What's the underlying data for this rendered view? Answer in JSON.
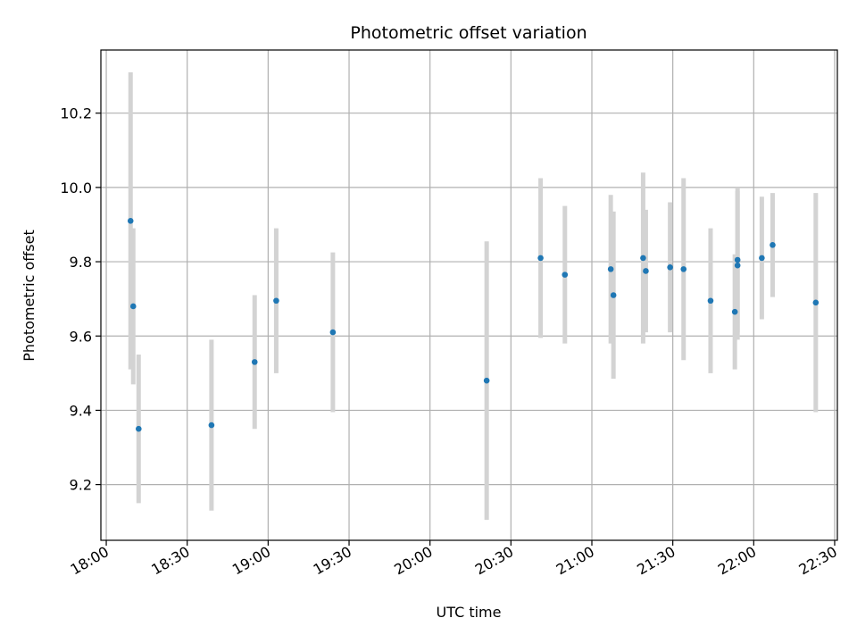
{
  "chart_data": {
    "type": "scatter",
    "title": "Photometric offset variation",
    "xlabel": "UTC time",
    "ylabel": "Photometric offset",
    "x_ticks": [
      "18:00",
      "18:30",
      "19:00",
      "19:30",
      "20:00",
      "20:30",
      "21:00",
      "21:30",
      "22:00",
      "22:30"
    ],
    "y_ticks": [
      "9.2",
      "9.4",
      "9.6",
      "9.8",
      "10.0",
      "10.2"
    ],
    "xlim": [
      "17:58",
      "22:31"
    ],
    "ylim": [
      9.05,
      10.37
    ],
    "grid": true,
    "points": [
      {
        "time": "18:09",
        "y": 9.91,
        "err": 0.4
      },
      {
        "time": "18:10",
        "y": 9.68,
        "err": 0.21
      },
      {
        "time": "18:12",
        "y": 9.35,
        "err": 0.2
      },
      {
        "time": "18:39",
        "y": 9.36,
        "err": 0.23
      },
      {
        "time": "18:55",
        "y": 9.53,
        "err": 0.18
      },
      {
        "time": "19:03",
        "y": 9.695,
        "err": 0.195
      },
      {
        "time": "19:24",
        "y": 9.61,
        "err": 0.215
      },
      {
        "time": "20:21",
        "y": 9.48,
        "err": 0.375
      },
      {
        "time": "20:41",
        "y": 9.81,
        "err": 0.215
      },
      {
        "time": "20:50",
        "y": 9.765,
        "err": 0.185
      },
      {
        "time": "21:07",
        "y": 9.78,
        "err": 0.2
      },
      {
        "time": "21:08",
        "y": 9.71,
        "err": 0.225
      },
      {
        "time": "21:19",
        "y": 9.81,
        "err": 0.23
      },
      {
        "time": "21:20",
        "y": 9.775,
        "err": 0.165
      },
      {
        "time": "21:29",
        "y": 9.785,
        "err": 0.175
      },
      {
        "time": "21:34",
        "y": 9.78,
        "err": 0.245
      },
      {
        "time": "21:44",
        "y": 9.695,
        "err": 0.195
      },
      {
        "time": "21:53",
        "y": 9.665,
        "err": 0.155
      },
      {
        "time": "21:54",
        "y": 9.805,
        "err": 0.195
      },
      {
        "time": "21:54",
        "y": 9.79,
        "err": 0.2
      },
      {
        "time": "22:03",
        "y": 9.81,
        "err": 0.165
      },
      {
        "time": "22:07",
        "y": 9.845,
        "err": 0.14
      },
      {
        "time": "22:23",
        "y": 9.69,
        "err": 0.295
      }
    ],
    "colors": {
      "marker": "#1f77b4",
      "errorbar": "#d3d3d3",
      "grid": "#b0b0b0",
      "axis": "#000000"
    }
  }
}
